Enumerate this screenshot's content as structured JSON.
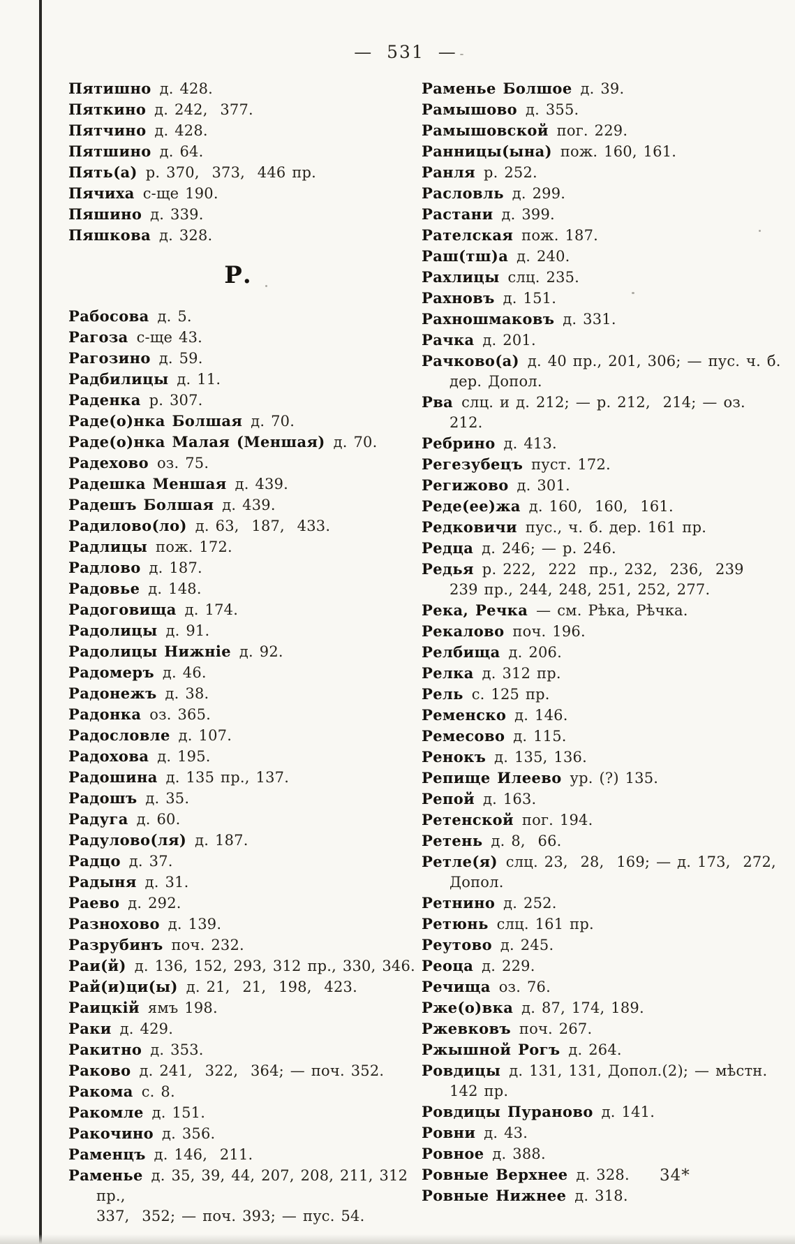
{
  "page": {
    "header_page_number": "— 531 —",
    "printers_signature": "34*"
  },
  "section": {
    "letter_header": "Р."
  },
  "colors": {
    "paper": "#f9f8f3",
    "ink": "#201c16"
  },
  "columns": {
    "left_top": [
      {
        "h": "Пятишно",
        "t": "д. 428."
      },
      {
        "h": "Пяткино",
        "t": "д. 242,  377."
      },
      {
        "h": "Пятчино",
        "t": "д. 428."
      },
      {
        "h": "Пятшино",
        "t": "д. 64."
      },
      {
        "h": "Пять(а)",
        "t": "р. 370,  373,  446 пр."
      },
      {
        "h": "Пячиха",
        "t": "с-ще 190."
      },
      {
        "h": "Пяшино",
        "t": "д. 339."
      },
      {
        "h": "Пяшкова",
        "t": "д. 328."
      }
    ],
    "left_main": [
      {
        "h": "Рабосова",
        "t": "д. 5."
      },
      {
        "h": "Рагоза",
        "t": "с-ще 43."
      },
      {
        "h": "Рагозино",
        "t": "д. 59."
      },
      {
        "h": "Радбилицы",
        "t": "д. 11."
      },
      {
        "h": "Раденка",
        "t": "р. 307."
      },
      {
        "h": "Раде(о)нка Болшая",
        "t": "д. 70."
      },
      {
        "h": "Раде(о)нка Малая (Меншая)",
        "t": "д. 70."
      },
      {
        "h": "Радехово",
        "t": "оз. 75."
      },
      {
        "h": "Радешка Меншая",
        "t": "д. 439."
      },
      {
        "h": "Радешъ Болшая",
        "t": "д. 439."
      },
      {
        "h": "Радилово(ло)",
        "t": "д. 63,  187,  433."
      },
      {
        "h": "Радлицы",
        "t": "пож. 172."
      },
      {
        "h": "Радлово",
        "t": "д. 187."
      },
      {
        "h": "Радовье",
        "t": "д. 148."
      },
      {
        "h": "Радоговища",
        "t": "д. 174."
      },
      {
        "h": "Радолицы",
        "t": "д. 91."
      },
      {
        "h": "Радолицы Нижніе",
        "t": "д. 92."
      },
      {
        "h": "Радомеръ",
        "t": "д. 46."
      },
      {
        "h": "Радонежъ",
        "t": "д. 38."
      },
      {
        "h": "Радонка",
        "t": "оз. 365."
      },
      {
        "h": "Радословле",
        "t": "д. 107."
      },
      {
        "h": "Радохова",
        "t": "д. 195."
      },
      {
        "h": "Радошина",
        "t": "д. 135 пр., 137."
      },
      {
        "h": "Радошъ",
        "t": "д. 35."
      },
      {
        "h": "Радуга",
        "t": "д. 60."
      },
      {
        "h": "Радулово(ля)",
        "t": "д. 187."
      },
      {
        "h": "Радцо",
        "t": "д. 37."
      },
      {
        "h": "Радыня",
        "t": "д. 31."
      },
      {
        "h": "Раево",
        "t": "д. 292."
      },
      {
        "h": "Разнохово",
        "t": "д. 139."
      },
      {
        "h": "Разрубинъ",
        "t": "поч. 232."
      },
      {
        "h": "Раи(й)",
        "t": "д. 136, 152, 293, 312 пр., 330, 346."
      },
      {
        "h": "Рай(и)ци(ы)",
        "t": "д. 21,  21,  198,  423."
      },
      {
        "h": "Раицкій",
        "t": "ямъ 198."
      },
      {
        "h": "Раки",
        "t": "д. 429."
      },
      {
        "h": "Ракитно",
        "t": "д. 353."
      },
      {
        "h": "Раково",
        "t": "д. 241,  322,  364; — поч. 352."
      },
      {
        "h": "Ракома",
        "t": "с. 8."
      },
      {
        "h": "Ракомле",
        "t": "д. 151."
      },
      {
        "h": "Ракочино",
        "t": "д. 356."
      },
      {
        "h": "Раменцъ",
        "t": "д. 146,  211."
      },
      {
        "h": "Раменье",
        "t": "д. 35, 39, 44, 207, 208, 211, 312 пр.,\n337,  352; — поч. 393; — пус. 54."
      }
    ],
    "right": [
      {
        "h": "Раменье Болшое",
        "t": "д. 39."
      },
      {
        "h": "Рамышово",
        "t": "д. 355."
      },
      {
        "h": "Рамышовской",
        "t": "пог. 229."
      },
      {
        "h": "Ранницы(ына)",
        "t": "пож. 160, 161."
      },
      {
        "h": "Ранля",
        "t": "р. 252."
      },
      {
        "h": "Расловль",
        "t": "д. 299."
      },
      {
        "h": "Растани",
        "t": "д. 399."
      },
      {
        "h": "Рателская",
        "t": "пож. 187."
      },
      {
        "h": "Раш(тш)а",
        "t": "д. 240."
      },
      {
        "h": "Рахлицы",
        "t": "слц. 235."
      },
      {
        "h": "Рахновъ",
        "t": "д. 151."
      },
      {
        "h": "Рахношмаковъ",
        "t": "д. 331."
      },
      {
        "h": "Рачка",
        "t": "д. 201."
      },
      {
        "h": "Рачково(а)",
        "t": "д. 40 пр., 201, 306; — пус. ч. б.\nдер. Допол."
      },
      {
        "h": "Рва",
        "t": "слц. и д. 212; — р. 212,  214; — оз.\n212."
      },
      {
        "h": "Ребрино",
        "t": "д. 413."
      },
      {
        "h": "Регезубецъ",
        "t": "пуст. 172."
      },
      {
        "h": "Регижово",
        "t": "д. 301."
      },
      {
        "h": "Реде(ее)жа",
        "t": "д. 160,  160,  161."
      },
      {
        "h": "Редковичи",
        "t": "пус., ч. б. дер. 161 пр."
      },
      {
        "h": "Редца",
        "t": "д. 246; — р. 246."
      },
      {
        "h": "Редья",
        "t": "р. 222,  222  пр., 232,  236,  239\n239 пр., 244, 248, 251, 252, 277."
      },
      {
        "h": "Река, Речка",
        "t": "— см. Рѣка, Рѣчка."
      },
      {
        "h": "Рекалово",
        "t": "поч. 196."
      },
      {
        "h": "Релбища",
        "t": "д. 206."
      },
      {
        "h": "Релка",
        "t": "д. 312 пр."
      },
      {
        "h": "Рель",
        "t": "с. 125 пр."
      },
      {
        "h": "Ременско",
        "t": "д. 146."
      },
      {
        "h": "Ремесово",
        "t": "д. 115."
      },
      {
        "h": "Ренокъ",
        "t": "д. 135, 136."
      },
      {
        "h": "Репище Илеево",
        "t": "ур. (?) 135."
      },
      {
        "h": "Репой",
        "t": "д. 163."
      },
      {
        "h": "Ретенской",
        "t": "пог. 194."
      },
      {
        "h": "Ретень",
        "t": "д. 8,  66."
      },
      {
        "h": "Ретле(я)",
        "t": "слц. 23,  28,  169; — д. 173,  272,\nДопол."
      },
      {
        "h": "Ретнино",
        "t": "д. 252."
      },
      {
        "h": "Ретюнь",
        "t": "слц. 161 пр."
      },
      {
        "h": "Реутово",
        "t": "д. 245."
      },
      {
        "h": "Реоца",
        "t": "д. 229."
      },
      {
        "h": "Речища",
        "t": "оз. 76."
      },
      {
        "h": "Рже(о)вка",
        "t": "д. 87, 174, 189."
      },
      {
        "h": "Ржевковъ",
        "t": "поч. 267."
      },
      {
        "h": "Ржышной Рогъ",
        "t": "д. 264."
      },
      {
        "h": "Ровдицы",
        "t": "д. 131, 131, Допол.(2); — мѣстн.\n142 пр."
      },
      {
        "h": "Ровдицы Пураново",
        "t": "д. 141."
      },
      {
        "h": "Ровни",
        "t": "д. 43."
      },
      {
        "h": "Ровное",
        "t": "д. 388."
      },
      {
        "h": "Ровные Верхнее",
        "t": "д. 328."
      },
      {
        "h": "Ровные Нижнее",
        "t": "д. 318."
      }
    ]
  }
}
